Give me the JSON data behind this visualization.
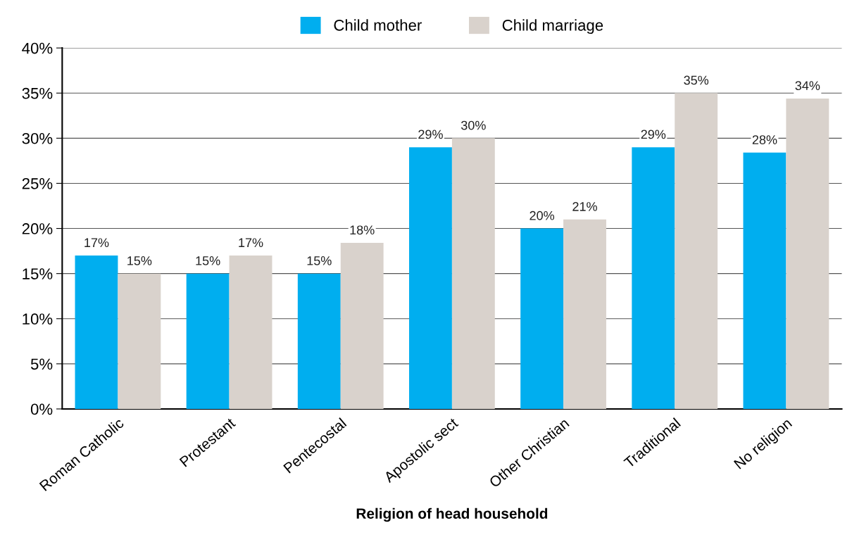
{
  "chart_data": {
    "type": "bar",
    "xlabel": "Religion of head household",
    "categories": [
      "Roman Catholic",
      "Protestant",
      "Pentecostal",
      "Apostolic sect",
      "Other Christian",
      "Traditional",
      "No religion"
    ],
    "series": [
      {
        "name": "Child mother",
        "color": "#00aeef",
        "values": [
          17,
          15,
          15,
          29,
          20,
          29,
          28.4
        ],
        "value_labels": [
          "17%",
          "15%",
          "15%",
          "29%",
          "20%",
          "29%",
          "28%"
        ]
      },
      {
        "name": "Child marriage",
        "color": "#d9d2cc",
        "values": [
          15,
          17,
          18.4,
          30,
          21,
          35,
          34.4
        ],
        "value_labels": [
          "15%",
          "17%",
          "18%",
          "30%",
          "21%",
          "35%",
          "34%"
        ]
      }
    ],
    "ylim": [
      0,
      40
    ],
    "yticks": [
      {
        "value": 0,
        "label": "0%"
      },
      {
        "value": 5,
        "label": "5%"
      },
      {
        "value": 10,
        "label": "10%"
      },
      {
        "value": 15,
        "label": "15%"
      },
      {
        "value": 20,
        "label": "20%"
      },
      {
        "value": 25,
        "label": "25%"
      },
      {
        "value": 30,
        "label": "30%"
      },
      {
        "value": 35,
        "label": "35%"
      },
      {
        "value": 40,
        "label": "40%"
      }
    ],
    "grid": "y",
    "legend": "top"
  }
}
